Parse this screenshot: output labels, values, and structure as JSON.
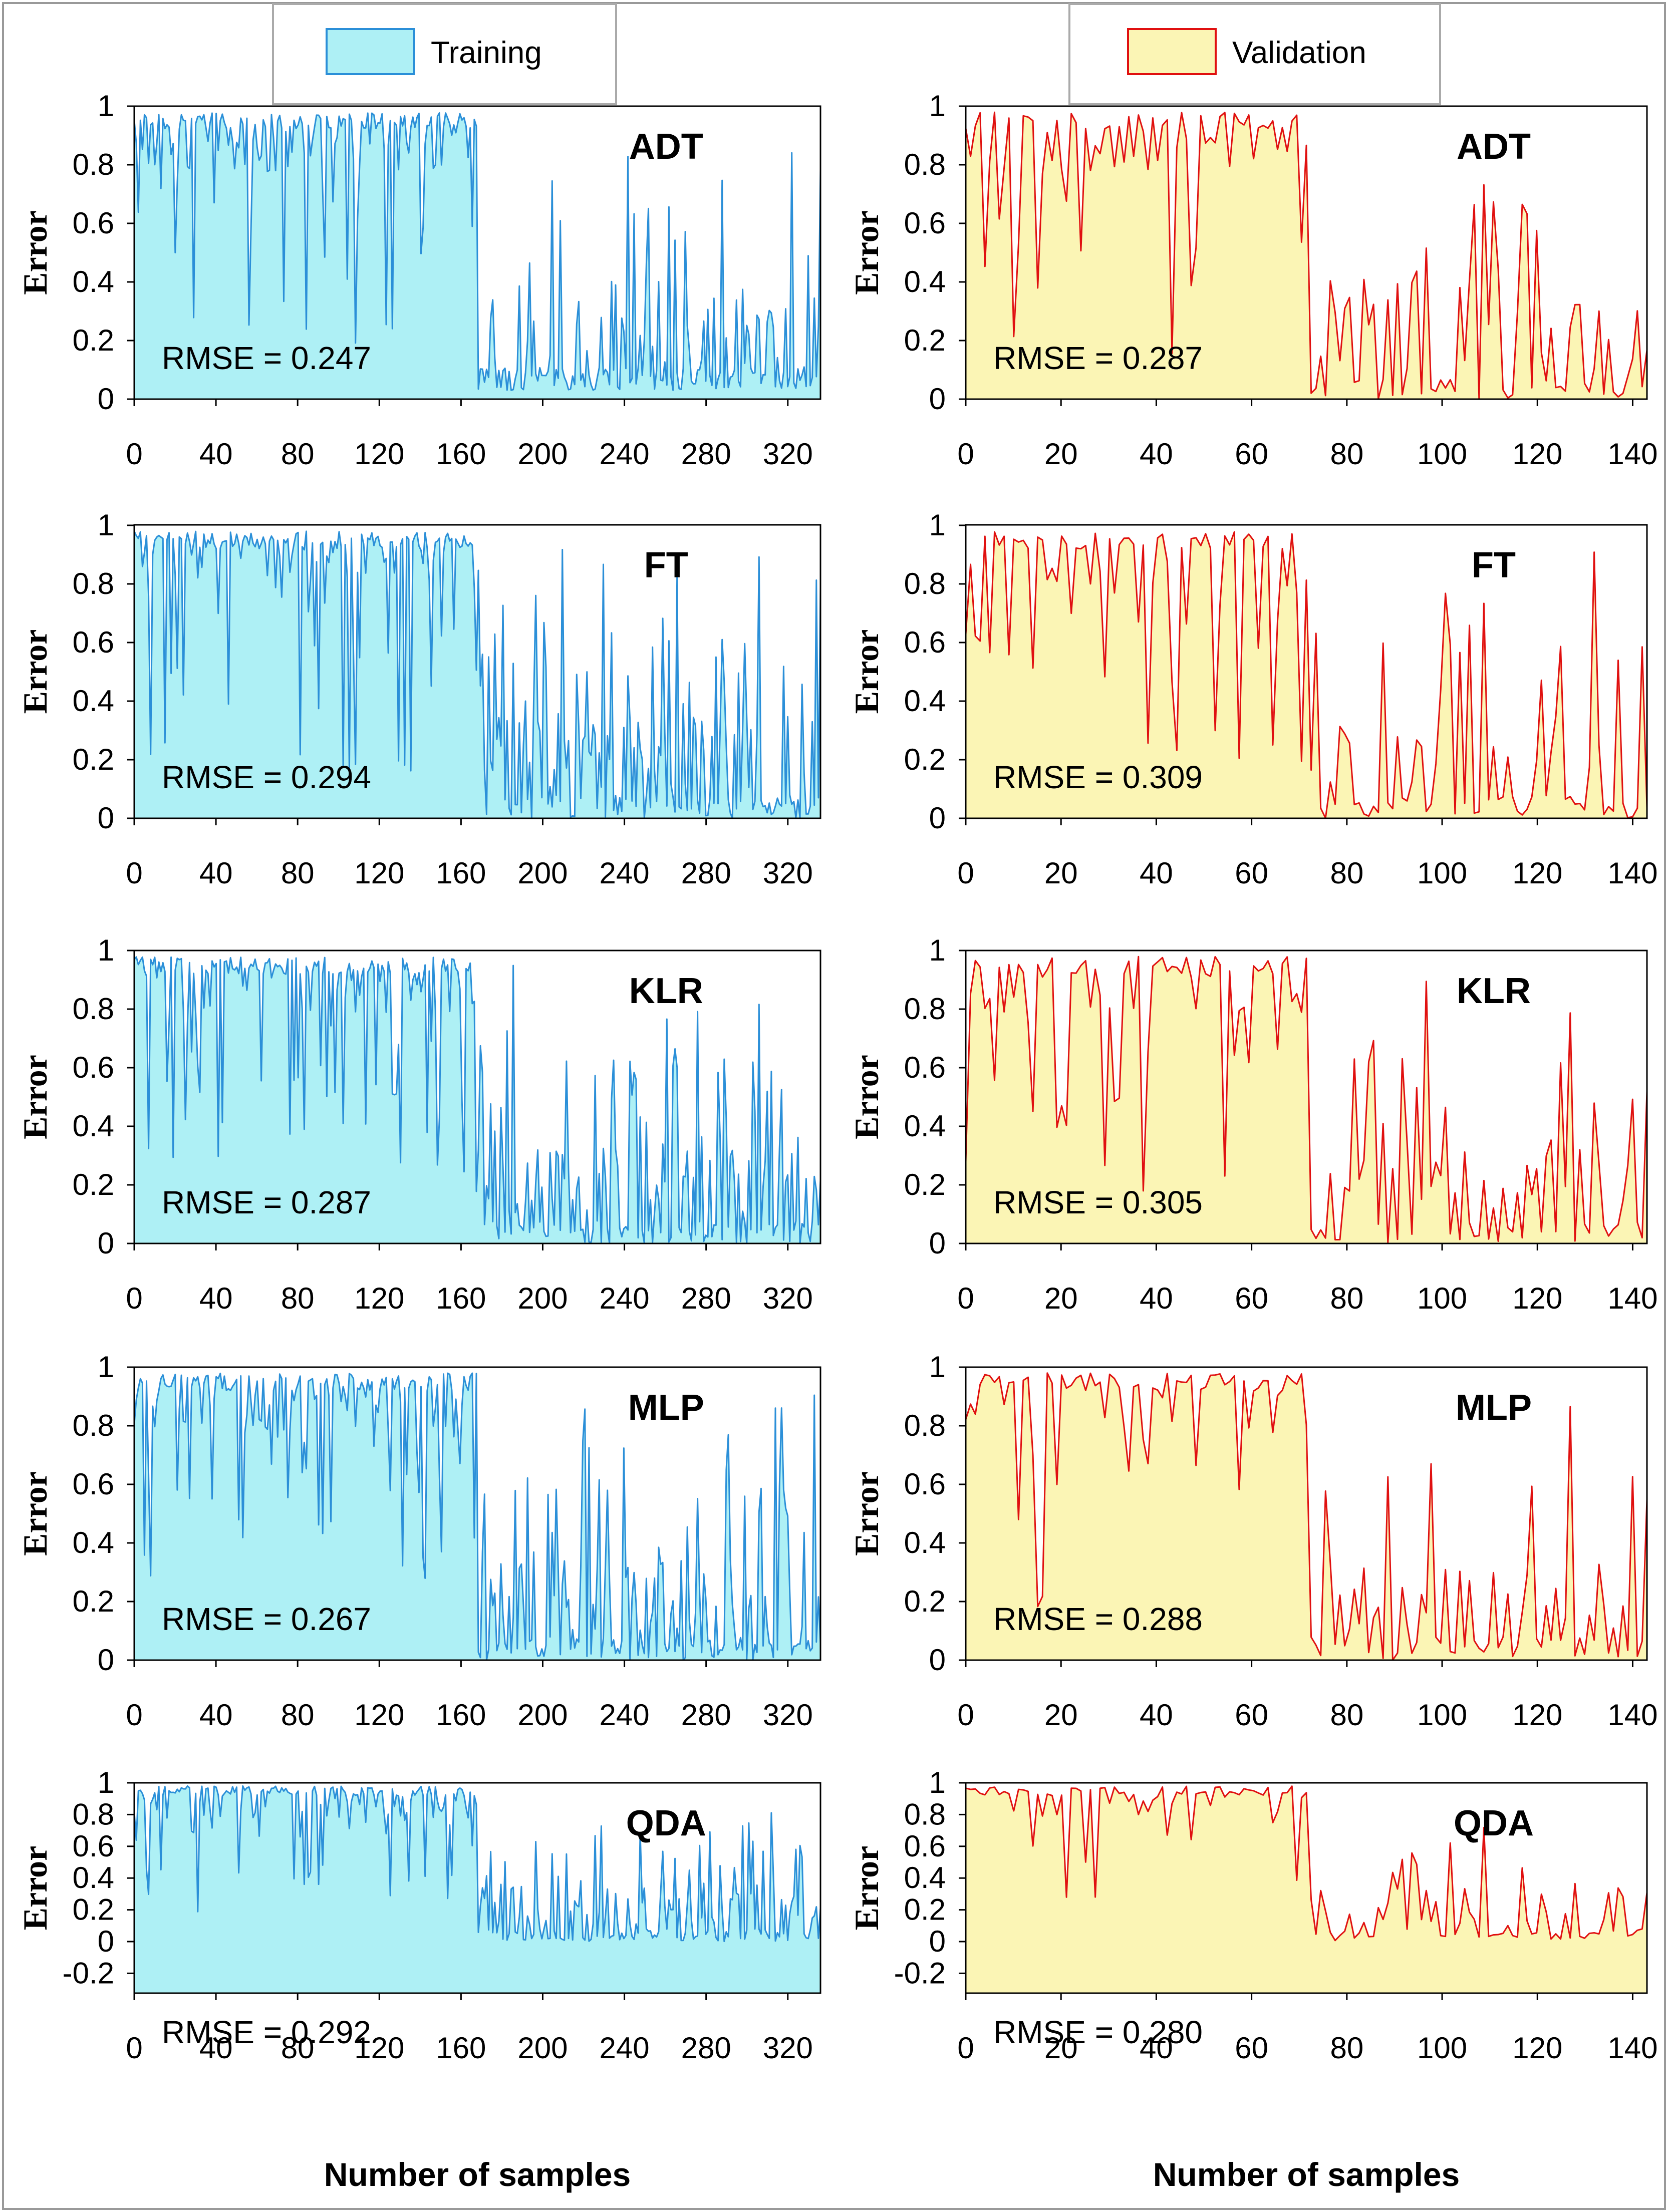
{
  "legend": {
    "training_label": "Training",
    "validation_label": "Validation"
  },
  "colors": {
    "training_line": "#2b8fd8",
    "training_fill": "#aef0f5",
    "validation_line": "#e01010",
    "validation_fill": "#fbf5b5"
  },
  "chart_data": [
    {
      "type": "area",
      "dataset": "Training",
      "model": "ADT",
      "rmse_label": "RMSE = 0.247",
      "ylabel": "Error",
      "xlabel": "",
      "xlim": [
        0,
        336
      ],
      "xticks": [
        0,
        40,
        80,
        120,
        160,
        200,
        240,
        280,
        320
      ],
      "ylim": [
        0,
        1
      ],
      "yticks": [
        "0",
        "0.2",
        "0.4",
        "0.6",
        "0.8",
        "1"
      ]
    },
    {
      "type": "area",
      "dataset": "Validation",
      "model": "ADT",
      "rmse_label": "RMSE = 0.287",
      "ylabel": "Error",
      "xlabel": "",
      "xlim": [
        0,
        143
      ],
      "xticks": [
        0,
        20,
        40,
        60,
        80,
        100,
        120,
        140
      ],
      "ylim": [
        0,
        1
      ],
      "yticks": [
        "0",
        "0.2",
        "0.4",
        "0.6",
        "0.8",
        "1"
      ]
    },
    {
      "type": "area",
      "dataset": "Training",
      "model": "FT",
      "rmse_label": "RMSE = 0.294",
      "ylabel": "Error",
      "xlabel": "",
      "xlim": [
        0,
        336
      ],
      "xticks": [
        0,
        40,
        80,
        120,
        160,
        200,
        240,
        280,
        320
      ],
      "ylim": [
        0,
        1
      ],
      "yticks": [
        "0",
        "0.2",
        "0.4",
        "0.6",
        "0.8",
        "1"
      ]
    },
    {
      "type": "area",
      "dataset": "Validation",
      "model": "FT",
      "rmse_label": "RMSE = 0.309",
      "ylabel": "Error",
      "xlabel": "",
      "xlim": [
        0,
        143
      ],
      "xticks": [
        0,
        20,
        40,
        60,
        80,
        100,
        120,
        140
      ],
      "ylim": [
        0,
        1
      ],
      "yticks": [
        "0",
        "0.2",
        "0.4",
        "0.6",
        "0.8",
        "1"
      ]
    },
    {
      "type": "area",
      "dataset": "Training",
      "model": "KLR",
      "rmse_label": "RMSE = 0.287",
      "ylabel": "Error",
      "xlabel": "",
      "xlim": [
        0,
        336
      ],
      "xticks": [
        0,
        40,
        80,
        120,
        160,
        200,
        240,
        280,
        320
      ],
      "ylim": [
        0,
        1
      ],
      "yticks": [
        "0",
        "0.2",
        "0.4",
        "0.6",
        "0.8",
        "1"
      ]
    },
    {
      "type": "area",
      "dataset": "Validation",
      "model": "KLR",
      "rmse_label": "RMSE = 0.305",
      "ylabel": "Error",
      "xlabel": "",
      "xlim": [
        0,
        143
      ],
      "xticks": [
        0,
        20,
        40,
        60,
        80,
        100,
        120,
        140
      ],
      "ylim": [
        0,
        1
      ],
      "yticks": [
        "0",
        "0.2",
        "0.4",
        "0.6",
        "0.8",
        "1"
      ]
    },
    {
      "type": "area",
      "dataset": "Training",
      "model": "MLP",
      "rmse_label": "RMSE = 0.267",
      "ylabel": "Error",
      "xlabel": "",
      "xlim": [
        0,
        336
      ],
      "xticks": [
        0,
        40,
        80,
        120,
        160,
        200,
        240,
        280,
        320
      ],
      "ylim": [
        0,
        1
      ],
      "yticks": [
        "0",
        "0.2",
        "0.4",
        "0.6",
        "0.8",
        "1"
      ]
    },
    {
      "type": "area",
      "dataset": "Validation",
      "model": "MLP",
      "rmse_label": "RMSE = 0.288",
      "ylabel": "Error",
      "xlabel": "",
      "xlim": [
        0,
        143
      ],
      "xticks": [
        0,
        20,
        40,
        60,
        80,
        100,
        120,
        140
      ],
      "ylim": [
        0,
        1
      ],
      "yticks": [
        "0",
        "0.2",
        "0.4",
        "0.6",
        "0.8",
        "1"
      ]
    },
    {
      "type": "area",
      "dataset": "Training",
      "model": "QDA",
      "rmse_label": "RMSE = 0.292",
      "ylabel": "Error",
      "xlabel": "Number of samples",
      "xlim": [
        0,
        336
      ],
      "xticks": [
        0,
        40,
        80,
        120,
        160,
        200,
        240,
        280,
        320
      ],
      "ylim": [
        -0.2,
        1
      ],
      "yticks": [
        "-0.2",
        "0",
        "0.2",
        "0.4",
        "0.6",
        "0.8",
        "1"
      ]
    },
    {
      "type": "area",
      "dataset": "Validation",
      "model": "QDA",
      "rmse_label": "RMSE = 0.280",
      "ylabel": "Error",
      "xlabel": "Number of samples",
      "xlim": [
        0,
        143
      ],
      "xticks": [
        0,
        20,
        40,
        60,
        80,
        100,
        120,
        140
      ],
      "ylim": [
        -0.2,
        1
      ],
      "yticks": [
        "-0.2",
        "0",
        "0.2",
        "0.4",
        "0.6",
        "0.8",
        "1"
      ]
    }
  ]
}
